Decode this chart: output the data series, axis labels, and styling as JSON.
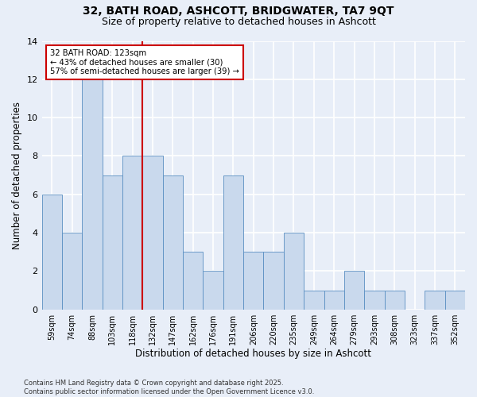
{
  "title_line1": "32, BATH ROAD, ASHCOTT, BRIDGWATER, TA7 9QT",
  "title_line2": "Size of property relative to detached houses in Ashcott",
  "xlabel": "Distribution of detached houses by size in Ashcott",
  "ylabel": "Number of detached properties",
  "bar_labels": [
    "59sqm",
    "74sqm",
    "88sqm",
    "103sqm",
    "118sqm",
    "132sqm",
    "147sqm",
    "162sqm",
    "176sqm",
    "191sqm",
    "206sqm",
    "220sqm",
    "235sqm",
    "249sqm",
    "264sqm",
    "279sqm",
    "293sqm",
    "308sqm",
    "323sqm",
    "337sqm",
    "352sqm"
  ],
  "bar_values": [
    6,
    4,
    12,
    7,
    8,
    8,
    7,
    3,
    2,
    7,
    3,
    3,
    4,
    1,
    1,
    2,
    1,
    1,
    0,
    1,
    1
  ],
  "bar_color": "#c9d9ed",
  "bar_edge_color": "#5a8fc2",
  "vline_x": 4.5,
  "vline_color": "#cc0000",
  "annotation_text": "32 BATH ROAD: 123sqm\n← 43% of detached houses are smaller (30)\n57% of semi-detached houses are larger (39) →",
  "annotation_box_color": "#ffffff",
  "annotation_box_edge": "#cc0000",
  "background_color": "#e8eef8",
  "grid_color": "#ffffff",
  "ylim": [
    0,
    14
  ],
  "yticks": [
    0,
    2,
    4,
    6,
    8,
    10,
    12,
    14
  ],
  "footer": "Contains HM Land Registry data © Crown copyright and database right 2025.\nContains public sector information licensed under the Open Government Licence v3.0."
}
